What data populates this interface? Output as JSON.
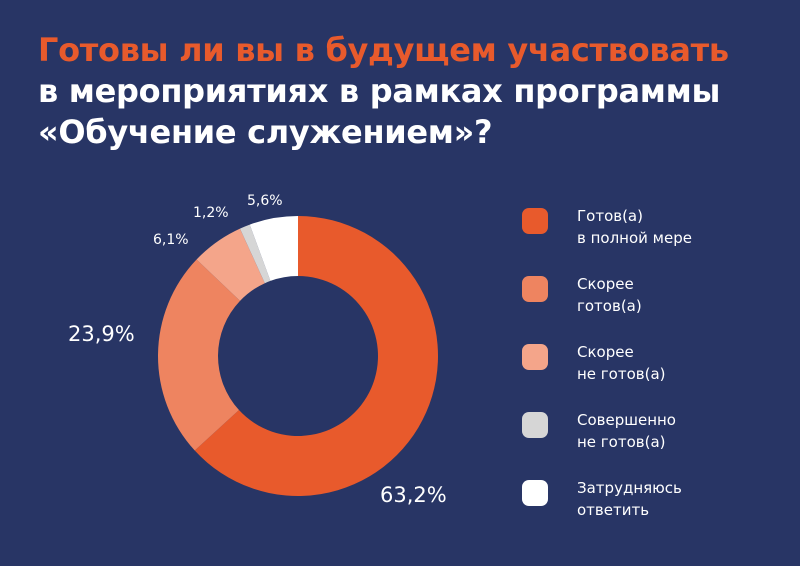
{
  "title": {
    "line1": "Готовы ли вы в будущем участвовать",
    "line2": "в мероприятиях в рамках программы",
    "line3": "«Обучение служением»?"
  },
  "chart_data": {
    "type": "pie",
    "donut": true,
    "title": "Готовы ли вы в будущем участвовать в мероприятиях в рамках программы «Обучение служением»?",
    "legend_position": "right",
    "slices": [
      {
        "name": "Готов(а) в полной мере",
        "value": 63.2,
        "label": "63,2%",
        "color": "#E85A2C"
      },
      {
        "name": "Скорее готов(а)",
        "value": 23.9,
        "label": "23,9%",
        "color": "#EE8460"
      },
      {
        "name": "Скорее не готов(а)",
        "value": 6.1,
        "label": "6,1%",
        "color": "#F4A58A"
      },
      {
        "name": "Совершенно не готов(а)",
        "value": 1.2,
        "label": "1,2%",
        "color": "#D6D6D6"
      },
      {
        "name": "Затрудняюсь ответить",
        "value": 5.6,
        "label": "5,6%",
        "color": "#FFFFFF"
      }
    ]
  },
  "legend": [
    {
      "text": "Готов(а)\nв полной мере",
      "color": "#E85A2C"
    },
    {
      "text": "Скорее\nготов(а)",
      "color": "#EE8460"
    },
    {
      "text": "Скорее\nне готов(а)",
      "color": "#F4A58A"
    },
    {
      "text": "Совершенно\nне готов(а)",
      "color": "#D6D6D6"
    },
    {
      "text": "Затрудняюсь\nответить",
      "color": "#FFFFFF"
    }
  ]
}
